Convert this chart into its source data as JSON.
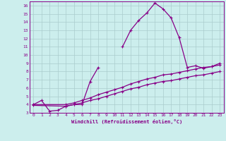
{
  "xlabel": "Windchill (Refroidissement éolien,°C)",
  "xlim": [
    -0.5,
    23.5
  ],
  "ylim": [
    3,
    16.5
  ],
  "xticks": [
    0,
    1,
    2,
    3,
    4,
    5,
    6,
    7,
    8,
    9,
    10,
    11,
    12,
    13,
    14,
    15,
    16,
    17,
    18,
    19,
    20,
    21,
    22,
    23
  ],
  "yticks": [
    3,
    4,
    5,
    6,
    7,
    8,
    9,
    10,
    11,
    12,
    13,
    14,
    15,
    16
  ],
  "bg_color": "#cceeed",
  "line_color": "#880088",
  "grid_color": "#aacccc",
  "curve1_x": [
    0,
    1,
    2,
    3,
    4,
    5,
    6,
    7,
    8,
    9,
    10,
    11,
    12,
    13,
    14,
    15,
    16,
    17,
    18,
    19,
    20,
    21,
    22,
    23
  ],
  "curve1_y": [
    4.0,
    4.5,
    3.2,
    3.3,
    3.8,
    4.0,
    4.0,
    6.8,
    8.5,
    null,
    null,
    11.0,
    13.0,
    14.2,
    15.1,
    16.3,
    15.6,
    14.5,
    12.1,
    8.5,
    8.7,
    8.4,
    8.6,
    9.0
  ],
  "curve2_x": [
    0,
    4,
    5,
    6,
    7,
    8,
    9,
    10,
    11,
    12,
    13,
    14,
    15,
    16,
    17,
    18,
    19,
    20,
    21,
    22,
    23
  ],
  "curve2_y": [
    4.0,
    4.0,
    4.2,
    4.5,
    4.8,
    5.2,
    5.5,
    5.8,
    6.1,
    6.5,
    6.8,
    7.1,
    7.3,
    7.6,
    7.7,
    7.9,
    8.1,
    8.3,
    8.5,
    8.6,
    8.8
  ],
  "curve3_x": [
    0,
    4,
    5,
    6,
    7,
    8,
    9,
    10,
    11,
    12,
    13,
    14,
    15,
    16,
    17,
    18,
    19,
    20,
    21,
    22,
    23
  ],
  "curve3_y": [
    3.9,
    3.8,
    4.0,
    4.2,
    4.5,
    4.7,
    5.0,
    5.3,
    5.6,
    5.9,
    6.1,
    6.4,
    6.6,
    6.8,
    6.9,
    7.1,
    7.3,
    7.5,
    7.6,
    7.8,
    8.0
  ]
}
